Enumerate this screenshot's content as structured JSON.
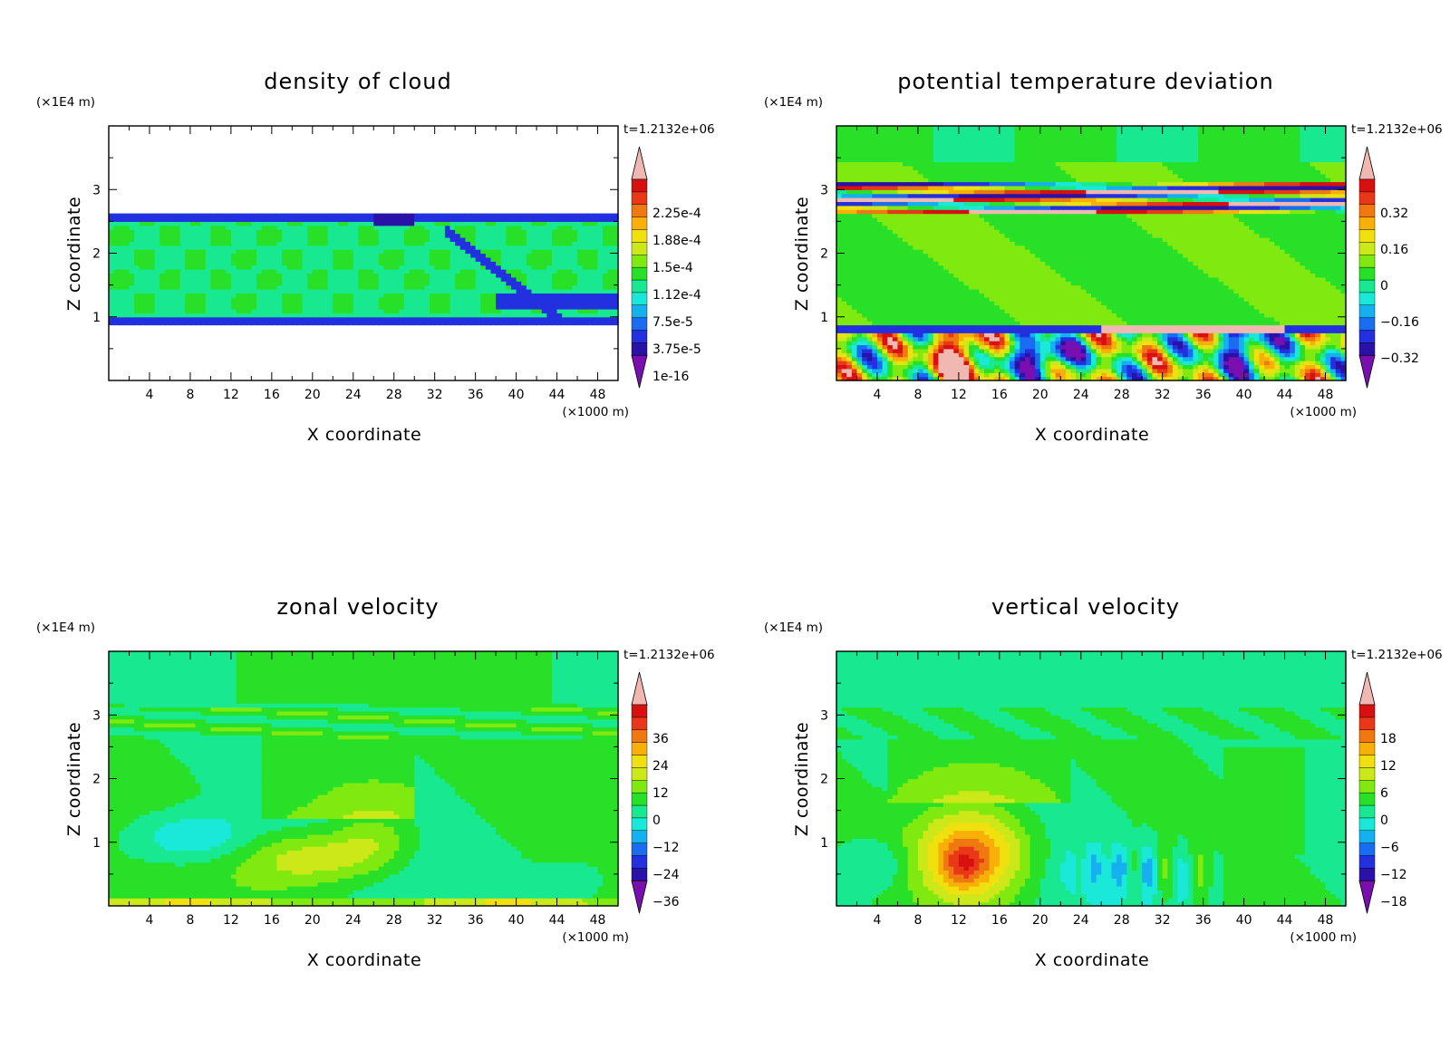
{
  "chart_data": [
    {
      "type": "heatmap",
      "title": "density of cloud",
      "xlabel": "X coordinate",
      "ylabel": "Z coordinate",
      "x_multiplier": "(×1000 m)",
      "y_multiplier": "(×1E4 m)",
      "time_label": "t=1.2132e+06",
      "xlim": [
        0,
        50
      ],
      "ylim": [
        0,
        4
      ],
      "xticks": [
        4,
        8,
        12,
        16,
        20,
        24,
        28,
        32,
        36,
        40,
        44,
        48
      ],
      "yticks": [
        1,
        2,
        3
      ],
      "colorbar_labels": [
        "2.25e-4",
        "1.88e-4",
        "1.5e-4",
        "1.12e-4",
        "7.5e-5",
        "3.75e-5",
        "1e-16"
      ],
      "colors": [
        "#7a0fb0",
        "#2a12a8",
        "#2330e0",
        "#1a6cf0",
        "#14b0f0",
        "#1ae8d8",
        "#18e890",
        "#28e028",
        "#80ea10",
        "#cce818",
        "#f0e010",
        "#f8b008",
        "#f07810",
        "#e83818",
        "#d81010",
        "#f0b8b0"
      ]
    },
    {
      "type": "heatmap",
      "title": "potential temperature deviation",
      "xlabel": "X coordinate",
      "ylabel": "Z coordinate",
      "x_multiplier": "(×1000 m)",
      "y_multiplier": "(×1E4 m)",
      "time_label": "t=1.2132e+06",
      "xlim": [
        0,
        50
      ],
      "ylim": [
        0,
        4
      ],
      "xticks": [
        4,
        8,
        12,
        16,
        20,
        24,
        28,
        32,
        36,
        40,
        44,
        48
      ],
      "yticks": [
        1,
        2,
        3
      ],
      "colorbar_labels": [
        "0.32",
        "0.16",
        "0",
        "−0.16",
        "−0.32"
      ],
      "colors": [
        "#7a0fb0",
        "#2a12a8",
        "#2330e0",
        "#1a6cf0",
        "#14b0f0",
        "#1ae8d8",
        "#18e890",
        "#28e028",
        "#80ea10",
        "#cce818",
        "#f0e010",
        "#f8b008",
        "#f07810",
        "#e83818",
        "#d81010",
        "#f0b8b0"
      ]
    },
    {
      "type": "heatmap",
      "title": "zonal velocity",
      "xlabel": "X coordinate",
      "ylabel": "Z coordinate",
      "x_multiplier": "(×1000 m)",
      "y_multiplier": "(×1E4 m)",
      "time_label": "t=1.2132e+06",
      "xlim": [
        0,
        50
      ],
      "ylim": [
        0,
        4
      ],
      "xticks": [
        4,
        8,
        12,
        16,
        20,
        24,
        28,
        32,
        36,
        40,
        44,
        48
      ],
      "yticks": [
        1,
        2,
        3
      ],
      "colorbar_labels": [
        "36",
        "24",
        "12",
        "0",
        "−12",
        "−24",
        "−36"
      ],
      "colors": [
        "#7a0fb0",
        "#2a12a8",
        "#2330e0",
        "#1a6cf0",
        "#14b0f0",
        "#1ae8d8",
        "#18e890",
        "#28e028",
        "#80ea10",
        "#cce818",
        "#f0e010",
        "#f8b008",
        "#f07810",
        "#e83818",
        "#d81010",
        "#f0b8b0"
      ]
    },
    {
      "type": "heatmap",
      "title": "vertical velocity",
      "xlabel": "X coordinate",
      "ylabel": "Z coordinate",
      "x_multiplier": "(×1000 m)",
      "y_multiplier": "(×1E4 m)",
      "time_label": "t=1.2132e+06",
      "xlim": [
        0,
        50
      ],
      "ylim": [
        0,
        4
      ],
      "xticks": [
        4,
        8,
        12,
        16,
        20,
        24,
        28,
        32,
        36,
        40,
        44,
        48
      ],
      "yticks": [
        1,
        2,
        3
      ],
      "colorbar_labels": [
        "18",
        "12",
        "6",
        "0",
        "−6",
        "−12",
        "−18"
      ],
      "colors": [
        "#7a0fb0",
        "#2a12a8",
        "#2330e0",
        "#1a6cf0",
        "#14b0f0",
        "#1ae8d8",
        "#18e890",
        "#28e028",
        "#80ea10",
        "#cce818",
        "#f0e010",
        "#f8b008",
        "#f07810",
        "#e83818",
        "#d81010",
        "#f0b8b0"
      ]
    }
  ]
}
